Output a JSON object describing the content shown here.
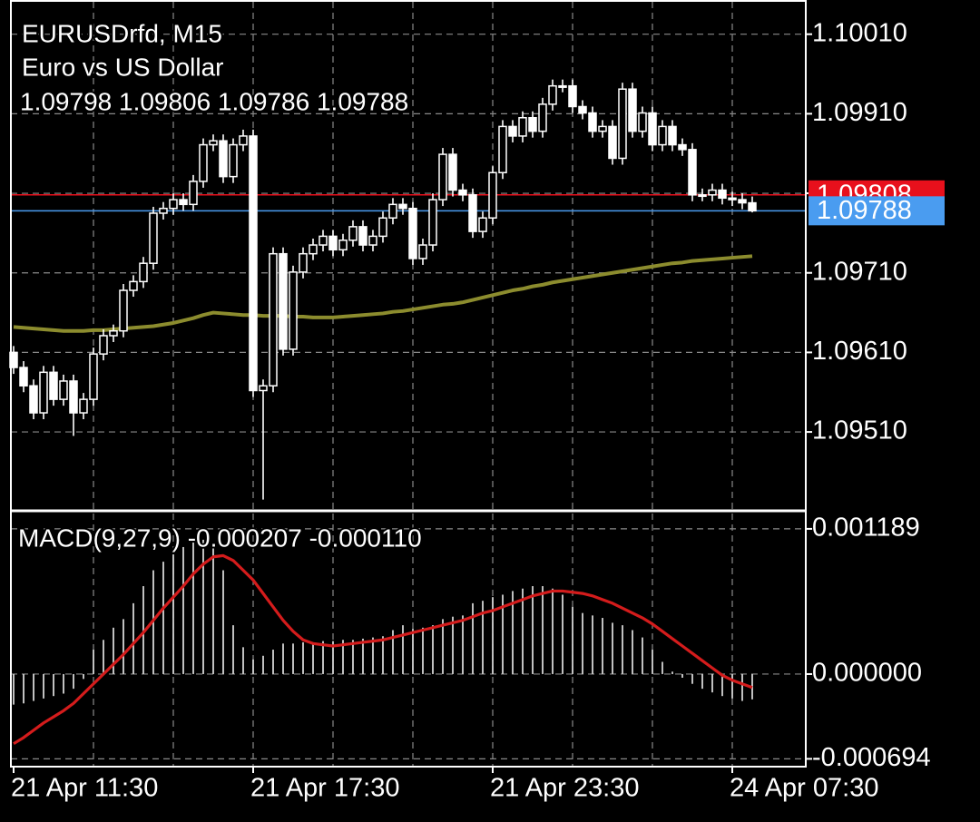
{
  "chart_data": [
    {
      "type": "candlestick",
      "title": "EURUSDrfd, M15",
      "subtitle": "Euro vs US Dollar",
      "ohlc_label": "1.09798 1.09806 1.09786 1.09788",
      "categories": [
        "21 Apr 11:30",
        null,
        null,
        null,
        null,
        null,
        null,
        null,
        null,
        null,
        null,
        null,
        null,
        null,
        null,
        null,
        null,
        null,
        null,
        null,
        null,
        null,
        null,
        null,
        "21 Apr 17:30",
        null,
        null,
        null,
        null,
        null,
        null,
        null,
        null,
        null,
        null,
        null,
        null,
        null,
        null,
        null,
        null,
        null,
        null,
        null,
        null,
        null,
        null,
        null,
        "21 Apr 23:30",
        null,
        null,
        null,
        null,
        null,
        null,
        null,
        null,
        null,
        null,
        null,
        null,
        null,
        null,
        null,
        null,
        null,
        null,
        null,
        null,
        null,
        null,
        null,
        "24 Apr 07:30",
        null,
        null
      ],
      "open": [
        1.0961,
        1.09591,
        1.09568,
        1.09534,
        1.09585,
        1.09551,
        1.09574,
        1.09534,
        1.09551,
        1.09608,
        1.09631,
        1.09637,
        1.09688,
        1.09699,
        1.09722,
        1.09785,
        1.09791,
        1.09802,
        1.09796,
        1.09825,
        1.09871,
        1.09876,
        1.09831,
        1.09871,
        1.09882,
        1.09562,
        1.09568,
        1.09734,
        1.09614,
        1.09711,
        1.09734,
        1.09745,
        1.09756,
        1.09739,
        1.09751,
        1.09768,
        1.09745,
        1.09756,
        1.09779,
        1.09796,
        1.09791,
        1.09728,
        1.09745,
        1.09802,
        1.09859,
        1.09814,
        1.09808,
        1.09762,
        1.09779,
        1.09836,
        1.09894,
        1.09882,
        1.09905,
        1.09888,
        1.09922,
        1.09945,
        1.09945,
        1.09919,
        1.09911,
        1.09888,
        1.09894,
        1.09854,
        1.09941,
        1.09888,
        1.09911,
        1.09871,
        1.09894,
        1.09871,
        1.09865,
        1.09808,
        1.09808,
        1.09814,
        1.09804,
        1.09802,
        1.09798
      ],
      "high": [
        1.09618,
        1.09599,
        1.09576,
        1.09593,
        1.09593,
        1.09582,
        1.09582,
        1.09559,
        1.09616,
        1.09639,
        1.09645,
        1.09696,
        1.09707,
        1.0973,
        1.09793,
        1.09799,
        1.0981,
        1.0981,
        1.09833,
        1.09879,
        1.09884,
        1.09884,
        1.09879,
        1.0989,
        1.0989,
        1.09576,
        1.09742,
        1.09742,
        1.09719,
        1.09742,
        1.09753,
        1.09764,
        1.09764,
        1.09759,
        1.09776,
        1.09776,
        1.09764,
        1.09787,
        1.09804,
        1.09804,
        1.09799,
        1.09753,
        1.0981,
        1.09867,
        1.09867,
        1.09822,
        1.09816,
        1.09787,
        1.09844,
        1.09902,
        1.09902,
        1.09913,
        1.09913,
        1.0993,
        1.09953,
        1.09953,
        1.09953,
        1.09927,
        1.09919,
        1.09902,
        1.09902,
        1.09949,
        1.09949,
        1.09919,
        1.09919,
        1.09902,
        1.09902,
        1.09879,
        1.09873,
        1.09816,
        1.09822,
        1.09822,
        1.09812,
        1.0981,
        1.09806
      ],
      "low": [
        1.09583,
        1.0956,
        1.09526,
        1.09526,
        1.09543,
        1.09543,
        1.09505,
        1.09526,
        1.09543,
        1.096,
        1.09623,
        1.09629,
        1.0968,
        1.09691,
        1.09714,
        1.09777,
        1.09783,
        1.09788,
        1.09788,
        1.09817,
        1.09863,
        1.09823,
        1.09823,
        1.09863,
        1.09554,
        1.09425,
        1.0956,
        1.09606,
        1.09606,
        1.09703,
        1.09726,
        1.09737,
        1.09731,
        1.09731,
        1.09743,
        1.09737,
        1.09737,
        1.09748,
        1.09771,
        1.09783,
        1.0972,
        1.0972,
        1.09737,
        1.09794,
        1.09806,
        1.098,
        1.09754,
        1.09754,
        1.09771,
        1.09828,
        1.09874,
        1.09874,
        1.0988,
        1.0988,
        1.09914,
        1.09937,
        1.09911,
        1.09903,
        1.0988,
        1.0988,
        1.09846,
        1.09846,
        1.0988,
        1.0988,
        1.09863,
        1.09863,
        1.09863,
        1.09857,
        1.098,
        1.098,
        1.098,
        1.09796,
        1.09794,
        1.0979,
        1.09786
      ],
      "close": [
        1.09591,
        1.09568,
        1.09534,
        1.09585,
        1.09551,
        1.09574,
        1.09534,
        1.09551,
        1.09608,
        1.09631,
        1.09637,
        1.09688,
        1.09699,
        1.09722,
        1.09785,
        1.09791,
        1.09802,
        1.09796,
        1.09825,
        1.09871,
        1.09876,
        1.09831,
        1.09871,
        1.09882,
        1.09562,
        1.09568,
        1.09734,
        1.09614,
        1.09711,
        1.09734,
        1.09745,
        1.09756,
        1.09739,
        1.09751,
        1.09768,
        1.09745,
        1.09756,
        1.09779,
        1.09796,
        1.09791,
        1.09728,
        1.09745,
        1.09802,
        1.09859,
        1.09814,
        1.09808,
        1.09762,
        1.09779,
        1.09836,
        1.09894,
        1.09882,
        1.09905,
        1.09888,
        1.09922,
        1.09945,
        1.09945,
        1.09919,
        1.09911,
        1.09888,
        1.09894,
        1.09854,
        1.09941,
        1.09888,
        1.09911,
        1.09871,
        1.09894,
        1.09871,
        1.09865,
        1.09808,
        1.09808,
        1.09814,
        1.09804,
        1.09802,
        1.09798,
        1.09788
      ],
      "ma": {
        "color": "#8c8c2e",
        "values": [
          1.09642,
          1.09641,
          1.0964,
          1.09639,
          1.09638,
          1.09637,
          1.09637,
          1.09637,
          1.09638,
          1.09638,
          1.09639,
          1.0964,
          1.09641,
          1.09642,
          1.09643,
          1.09645,
          1.09647,
          1.0965,
          1.09653,
          1.09657,
          1.0966,
          1.09659,
          1.09658,
          1.09657,
          1.09657,
          1.09656,
          1.09656,
          1.09656,
          1.09655,
          1.09655,
          1.09654,
          1.09654,
          1.09654,
          1.09655,
          1.09656,
          1.09657,
          1.09658,
          1.09659,
          1.09661,
          1.09662,
          1.09664,
          1.09666,
          1.09668,
          1.0967,
          1.09671,
          1.09673,
          1.09676,
          1.09679,
          1.09682,
          1.09685,
          1.09688,
          1.0969,
          1.09693,
          1.09695,
          1.09698,
          1.097,
          1.09702,
          1.09704,
          1.09706,
          1.09708,
          1.0971,
          1.09712,
          1.09714,
          1.09716,
          1.09718,
          1.0972,
          1.09722,
          1.09723,
          1.09725,
          1.09726,
          1.09727,
          1.09728,
          1.09729,
          1.0973,
          1.09731
        ]
      },
      "bull_color": "#000000",
      "bear_color": "#ffffff",
      "price_lines": [
        {
          "value": 1.09808,
          "color": "#e8101c"
        },
        {
          "value": 1.09788,
          "color": "#4a9cf0"
        }
      ],
      "ylim": [
        1.09412,
        1.10053
      ],
      "yticks": [
        {
          "value": 1.1001,
          "label": "1.10010"
        },
        {
          "value": 1.0991,
          "label": "1.09910"
        },
        {
          "value": 1.0981,
          "label": "1.09810"
        },
        {
          "value": 1.0971,
          "label": "1.09710"
        },
        {
          "value": 1.0961,
          "label": "1.09610"
        },
        {
          "value": 1.0951,
          "label": "1.09510"
        }
      ],
      "grid": true
    },
    {
      "type": "macd",
      "title": "MACD(9,27,9) -0.000207 -0.000110",
      "histogram": {
        "color": "#d4d4d4",
        "values": [
          -0.00025,
          -0.00024,
          -0.00022,
          -0.0002,
          -0.00018,
          -0.00016,
          -0.00012,
          -4e-05,
          0.0002,
          0.00028,
          0.00038,
          0.00045,
          0.00058,
          0.00072,
          0.00085,
          0.00092,
          0.00098,
          0.00104,
          0.00108,
          0.0011,
          0.00105,
          0.00085,
          0.0004,
          0.00022,
          0.00012,
          0.00015,
          0.0002,
          0.00025,
          0.00025,
          0.00026,
          0.00026,
          0.00027,
          0.00027,
          0.00028,
          0.00028,
          0.00029,
          0.0003,
          0.00031,
          0.00036,
          0.0004,
          0.00037,
          0.00038,
          0.0004,
          0.00045,
          0.00047,
          0.00048,
          0.00058,
          0.0006,
          0.00063,
          0.00065,
          0.00068,
          0.0007,
          0.00072,
          0.00072,
          0.0007,
          0.00065,
          0.00055,
          0.0005,
          0.00048,
          0.00046,
          0.00042,
          0.0004,
          0.00036,
          0.0003,
          0.0002,
          0.0001,
          2e-05,
          -3e-05,
          -8e-05,
          -0.00012,
          -0.00015,
          -0.00018,
          -0.0002,
          -0.00022,
          -0.000207
        ]
      },
      "signal": {
        "color": "#d41c1c",
        "values": [
          -0.00057,
          -0.00052,
          -0.00046,
          -0.0004,
          -0.00035,
          -0.0003,
          -0.00024,
          -0.00016,
          -8e-05,
          0.0,
          8e-05,
          0.00016,
          0.00025,
          0.00034,
          0.00044,
          0.00054,
          0.00063,
          0.00072,
          0.00082,
          0.0009,
          0.00096,
          0.00097,
          0.00093,
          0.00085,
          0.00077,
          0.00066,
          0.00055,
          0.00044,
          0.00035,
          0.00028,
          0.00025,
          0.00024,
          0.00023,
          0.00024,
          0.00025,
          0.00026,
          0.00027,
          0.00028,
          0.0003,
          0.00032,
          0.00034,
          0.00036,
          0.00038,
          0.0004,
          0.00042,
          0.00044,
          0.00047,
          0.0005,
          0.00052,
          0.00055,
          0.00058,
          0.00061,
          0.00064,
          0.00066,
          0.00068,
          0.00068,
          0.00067,
          0.00066,
          0.00064,
          0.00061,
          0.00058,
          0.00054,
          0.0005,
          0.00046,
          0.00041,
          0.00035,
          0.00029,
          0.00023,
          0.00017,
          0.00011,
          5e-05,
          -1e-05,
          -5e-05,
          -8e-05,
          -0.00011
        ]
      },
      "ylim": [
        -0.000758,
        0.001322
      ],
      "yticks": [
        0.001189,
        {
          "value": 0,
          "label": "0.000000"
        },
        -0.000694
      ],
      "grid": true
    }
  ]
}
